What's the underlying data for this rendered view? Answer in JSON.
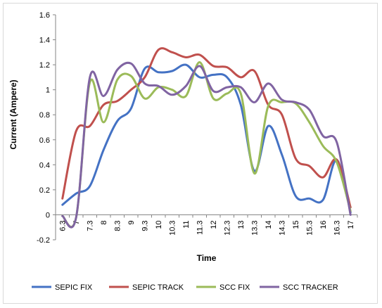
{
  "chart_data": {
    "type": "line",
    "title": "",
    "xlabel": "Time",
    "ylabel": "Current (Ampere)",
    "ylim": [
      -0.2,
      1.6
    ],
    "y_ticks": [
      "-0.2",
      "0",
      "0.2",
      "0.4",
      "0.6",
      "0.8",
      "1",
      "1.2",
      "1.4",
      "1.6"
    ],
    "categories": [
      "6.3",
      "7",
      "7.3",
      "8",
      "8.3",
      "9",
      "9.3",
      "10",
      "10.3",
      "11",
      "11.3",
      "12",
      "12.3",
      "13",
      "13.3",
      "14",
      "14.3",
      "15",
      "15.3",
      "16",
      "16.3",
      "17"
    ],
    "grid": false,
    "legend_position": "bottom",
    "series": [
      {
        "name": "SEPIC FIX",
        "color": "#4472C4",
        "values": [
          0.08,
          0.17,
          0.23,
          0.52,
          0.75,
          0.85,
          1.17,
          1.14,
          1.15,
          1.2,
          1.1,
          1.12,
          1.1,
          0.88,
          0.35,
          0.71,
          0.48,
          0.15,
          0.13,
          0.12,
          0.44,
          0.02
        ]
      },
      {
        "name": "SEPIC TRACK",
        "color": "#C0504D",
        "values": [
          0.13,
          0.67,
          0.71,
          0.88,
          0.91,
          1.0,
          1.1,
          1.32,
          1.3,
          1.26,
          1.28,
          1.19,
          1.18,
          1.1,
          1.15,
          0.88,
          0.8,
          0.45,
          0.39,
          0.3,
          0.44,
          0.06
        ]
      },
      {
        "name": "SCC FIX",
        "color": "#9BBB59",
        "values": [
          -0.01,
          -0.02,
          1.06,
          0.74,
          1.08,
          1.11,
          0.93,
          1.02,
          1.0,
          0.95,
          1.22,
          0.93,
          0.97,
          0.97,
          0.33,
          0.87,
          0.9,
          0.89,
          0.74,
          0.55,
          0.42,
          0.03
        ]
      },
      {
        "name": "SCC TRACKER",
        "color": "#8064A2",
        "values": [
          -0.01,
          -0.02,
          1.1,
          0.95,
          1.16,
          1.21,
          1.05,
          1.03,
          0.96,
          1.03,
          1.19,
          0.99,
          1.02,
          1.02,
          0.9,
          1.05,
          0.92,
          0.9,
          0.84,
          0.63,
          0.58,
          0.0
        ]
      }
    ]
  }
}
